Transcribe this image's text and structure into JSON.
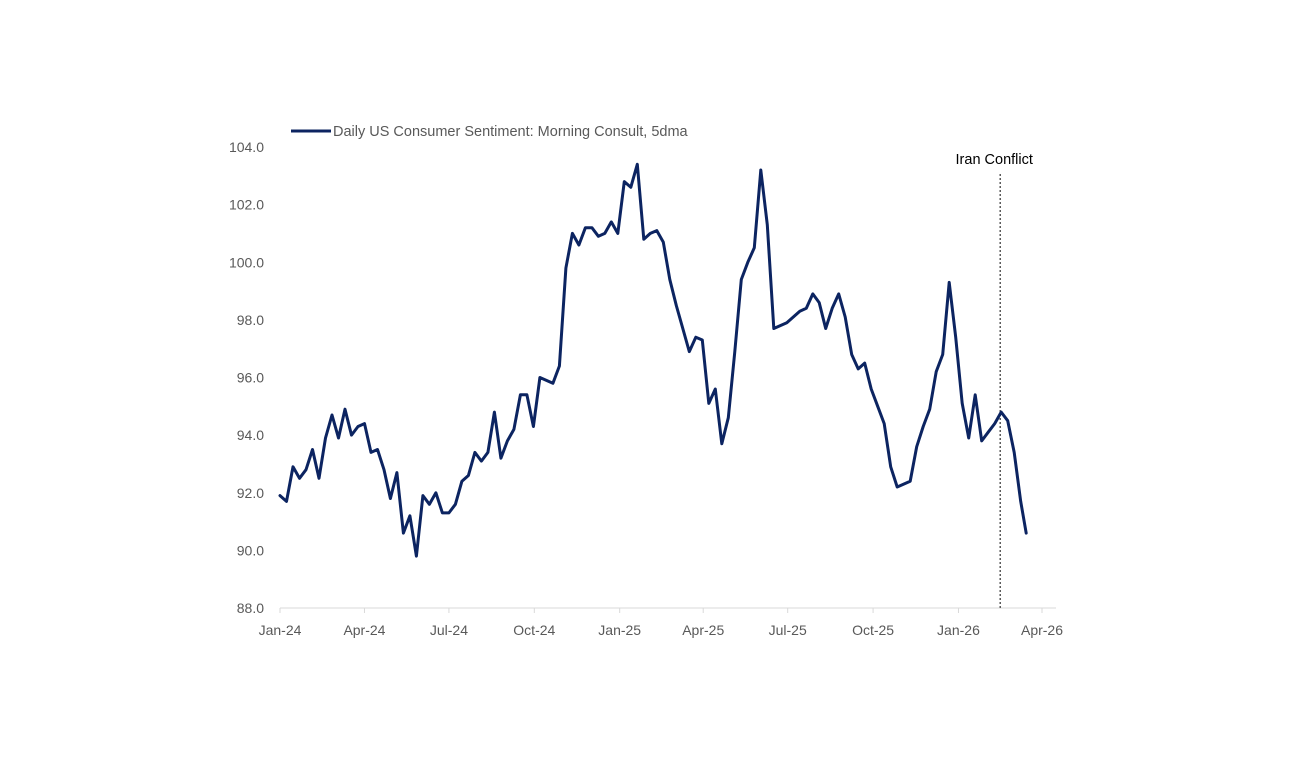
{
  "chart_data": {
    "type": "line",
    "title": "",
    "xlabel": "",
    "ylabel": "",
    "ylim": [
      88.0,
      104.0
    ],
    "xlim": [
      "2024-01-01",
      "2026-04-01"
    ],
    "y_ticks": [
      "88.0",
      "90.0",
      "92.0",
      "94.0",
      "96.0",
      "98.0",
      "100.0",
      "102.0",
      "104.0"
    ],
    "x_ticks": [
      {
        "date": "2024-01-01",
        "label": "Jan-24"
      },
      {
        "date": "2024-04-01",
        "label": "Apr-24"
      },
      {
        "date": "2024-07-01",
        "label": "Jul-24"
      },
      {
        "date": "2024-10-01",
        "label": "Oct-24"
      },
      {
        "date": "2025-01-01",
        "label": "Jan-25"
      },
      {
        "date": "2025-04-01",
        "label": "Apr-25"
      },
      {
        "date": "2025-07-01",
        "label": "Jul-25"
      },
      {
        "date": "2025-10-01",
        "label": "Oct-25"
      },
      {
        "date": "2026-01-01",
        "label": "Jan-26"
      },
      {
        "date": "2026-04-01",
        "label": "Apr-26"
      }
    ],
    "grid": false,
    "legend": {
      "placement": "top-left"
    },
    "series": [
      {
        "name": "Daily US Consumer Sentiment: Morning Consult, 5dma",
        "color": "#0C2461",
        "points": [
          {
            "x": "2024-01-01",
            "y": 91.9
          },
          {
            "x": "2024-01-08",
            "y": 91.7
          },
          {
            "x": "2024-01-15",
            "y": 92.9
          },
          {
            "x": "2024-01-22",
            "y": 92.5
          },
          {
            "x": "2024-01-29",
            "y": 92.8
          },
          {
            "x": "2024-02-05",
            "y": 93.5
          },
          {
            "x": "2024-02-12",
            "y": 92.5
          },
          {
            "x": "2024-02-19",
            "y": 93.9
          },
          {
            "x": "2024-02-26",
            "y": 94.7
          },
          {
            "x": "2024-03-04",
            "y": 93.9
          },
          {
            "x": "2024-03-11",
            "y": 94.9
          },
          {
            "x": "2024-03-18",
            "y": 94.0
          },
          {
            "x": "2024-03-25",
            "y": 94.3
          },
          {
            "x": "2024-04-01",
            "y": 94.4
          },
          {
            "x": "2024-04-08",
            "y": 93.4
          },
          {
            "x": "2024-04-15",
            "y": 93.5
          },
          {
            "x": "2024-04-22",
            "y": 92.8
          },
          {
            "x": "2024-04-29",
            "y": 91.8
          },
          {
            "x": "2024-05-06",
            "y": 92.7
          },
          {
            "x": "2024-05-13",
            "y": 90.6
          },
          {
            "x": "2024-05-20",
            "y": 91.2
          },
          {
            "x": "2024-05-27",
            "y": 89.8
          },
          {
            "x": "2024-06-03",
            "y": 91.9
          },
          {
            "x": "2024-06-10",
            "y": 91.6
          },
          {
            "x": "2024-06-17",
            "y": 92.0
          },
          {
            "x": "2024-06-24",
            "y": 91.3
          },
          {
            "x": "2024-07-01",
            "y": 91.3
          },
          {
            "x": "2024-07-08",
            "y": 91.6
          },
          {
            "x": "2024-07-15",
            "y": 92.4
          },
          {
            "x": "2024-07-22",
            "y": 92.6
          },
          {
            "x": "2024-07-29",
            "y": 93.4
          },
          {
            "x": "2024-08-05",
            "y": 93.1
          },
          {
            "x": "2024-08-12",
            "y": 93.4
          },
          {
            "x": "2024-08-19",
            "y": 94.8
          },
          {
            "x": "2024-08-26",
            "y": 93.2
          },
          {
            "x": "2024-09-02",
            "y": 93.8
          },
          {
            "x": "2024-09-09",
            "y": 94.2
          },
          {
            "x": "2024-09-16",
            "y": 95.4
          },
          {
            "x": "2024-09-23",
            "y": 95.4
          },
          {
            "x": "2024-09-30",
            "y": 94.3
          },
          {
            "x": "2024-10-07",
            "y": 96.0
          },
          {
            "x": "2024-10-14",
            "y": 95.9
          },
          {
            "x": "2024-10-21",
            "y": 95.8
          },
          {
            "x": "2024-10-28",
            "y": 96.4
          },
          {
            "x": "2024-11-04",
            "y": 99.8
          },
          {
            "x": "2024-11-11",
            "y": 101.0
          },
          {
            "x": "2024-11-18",
            "y": 100.6
          },
          {
            "x": "2024-11-25",
            "y": 101.2
          },
          {
            "x": "2024-12-02",
            "y": 101.2
          },
          {
            "x": "2024-12-09",
            "y": 100.9
          },
          {
            "x": "2024-12-16",
            "y": 101.0
          },
          {
            "x": "2024-12-23",
            "y": 101.4
          },
          {
            "x": "2024-12-30",
            "y": 101.0
          },
          {
            "x": "2025-01-06",
            "y": 102.8
          },
          {
            "x": "2025-01-13",
            "y": 102.6
          },
          {
            "x": "2025-01-20",
            "y": 103.4
          },
          {
            "x": "2025-01-27",
            "y": 100.8
          },
          {
            "x": "2025-02-03",
            "y": 101.0
          },
          {
            "x": "2025-02-10",
            "y": 101.1
          },
          {
            "x": "2025-02-17",
            "y": 100.7
          },
          {
            "x": "2025-02-24",
            "y": 99.4
          },
          {
            "x": "2025-03-03",
            "y": 98.5
          },
          {
            "x": "2025-03-10",
            "y": 97.7
          },
          {
            "x": "2025-03-17",
            "y": 96.9
          },
          {
            "x": "2025-03-24",
            "y": 97.4
          },
          {
            "x": "2025-03-31",
            "y": 97.3
          },
          {
            "x": "2025-04-07",
            "y": 95.1
          },
          {
            "x": "2025-04-14",
            "y": 95.6
          },
          {
            "x": "2025-04-21",
            "y": 93.7
          },
          {
            "x": "2025-04-28",
            "y": 94.6
          },
          {
            "x": "2025-05-05",
            "y": 96.9
          },
          {
            "x": "2025-05-12",
            "y": 99.4
          },
          {
            "x": "2025-05-19",
            "y": 100.0
          },
          {
            "x": "2025-05-26",
            "y": 100.5
          },
          {
            "x": "2025-06-02",
            "y": 103.2
          },
          {
            "x": "2025-06-09",
            "y": 101.3
          },
          {
            "x": "2025-06-16",
            "y": 97.7
          },
          {
            "x": "2025-06-23",
            "y": 97.8
          },
          {
            "x": "2025-06-30",
            "y": 97.9
          },
          {
            "x": "2025-07-07",
            "y": 98.1
          },
          {
            "x": "2025-07-14",
            "y": 98.3
          },
          {
            "x": "2025-07-21",
            "y": 98.4
          },
          {
            "x": "2025-07-28",
            "y": 98.9
          },
          {
            "x": "2025-08-04",
            "y": 98.6
          },
          {
            "x": "2025-08-11",
            "y": 97.7
          },
          {
            "x": "2025-08-18",
            "y": 98.4
          },
          {
            "x": "2025-08-25",
            "y": 98.9
          },
          {
            "x": "2025-09-01",
            "y": 98.1
          },
          {
            "x": "2025-09-08",
            "y": 96.8
          },
          {
            "x": "2025-09-15",
            "y": 96.3
          },
          {
            "x": "2025-09-22",
            "y": 96.5
          },
          {
            "x": "2025-09-29",
            "y": 95.6
          },
          {
            "x": "2025-10-06",
            "y": 95.0
          },
          {
            "x": "2025-10-13",
            "y": 94.4
          },
          {
            "x": "2025-10-20",
            "y": 92.9
          },
          {
            "x": "2025-10-27",
            "y": 92.2
          },
          {
            "x": "2025-11-03",
            "y": 92.3
          },
          {
            "x": "2025-11-10",
            "y": 92.4
          },
          {
            "x": "2025-11-17",
            "y": 93.6
          },
          {
            "x": "2025-11-24",
            "y": 94.3
          },
          {
            "x": "2025-12-01",
            "y": 94.9
          },
          {
            "x": "2025-12-08",
            "y": 96.2
          },
          {
            "x": "2025-12-15",
            "y": 96.8
          },
          {
            "x": "2025-12-22",
            "y": 99.3
          },
          {
            "x": "2025-12-29",
            "y": 97.4
          },
          {
            "x": "2026-01-05",
            "y": 95.1
          },
          {
            "x": "2026-01-12",
            "y": 93.9
          },
          {
            "x": "2026-01-19",
            "y": 95.4
          },
          {
            "x": "2026-01-26",
            "y": 93.8
          },
          {
            "x": "2026-02-02",
            "y": 94.1
          },
          {
            "x": "2026-02-09",
            "y": 94.4
          },
          {
            "x": "2026-02-16",
            "y": 94.8
          },
          {
            "x": "2026-02-23",
            "y": 94.5
          },
          {
            "x": "2026-03-02",
            "y": 93.4
          },
          {
            "x": "2026-03-09",
            "y": 91.7
          },
          {
            "x": "2026-03-15",
            "y": 90.6
          }
        ]
      }
    ],
    "annotations": [
      {
        "type": "vline",
        "x": "2026-02-15",
        "label": "Iran Conflict",
        "style": "dotted",
        "color": "#595959"
      }
    ]
  }
}
